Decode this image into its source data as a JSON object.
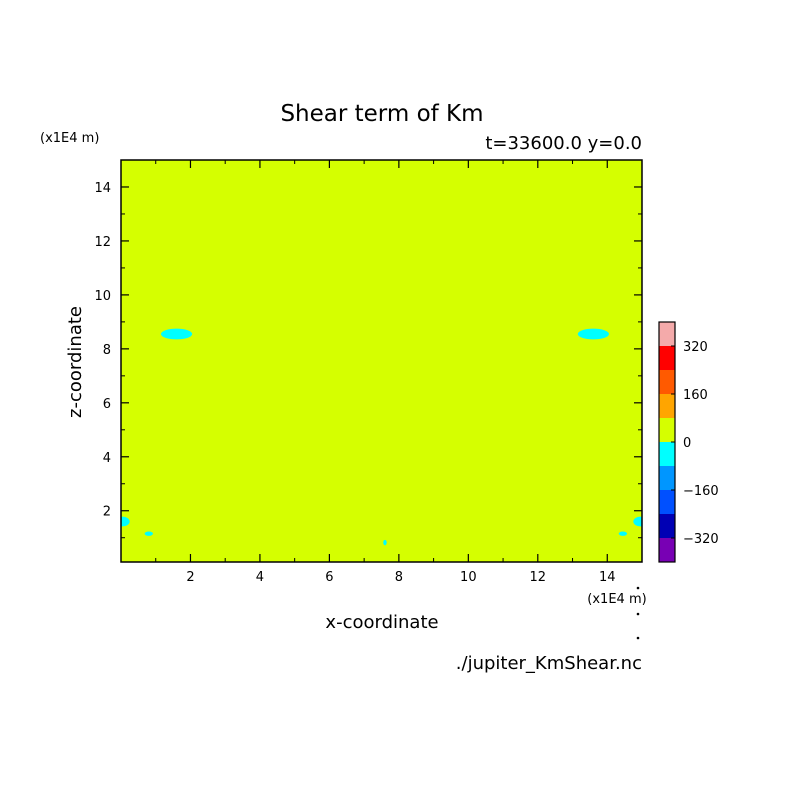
{
  "chart_data": {
    "type": "heatmap",
    "title": "Shear term of Km",
    "subtitle": "t=33600.0 y=0.0",
    "xlabel": "x-coordinate",
    "ylabel": "z-coordinate",
    "x_unit_label": "(x1E4 m)",
    "y_unit_label": "(x1E4 m)",
    "source_file": "./jupiter_KmShear.nc",
    "xlim": [
      0,
      15
    ],
    "ylim": [
      0.1,
      15
    ],
    "x_ticks": [
      2,
      4,
      6,
      8,
      10,
      12,
      14
    ],
    "y_ticks": [
      2,
      4,
      6,
      8,
      10,
      12,
      14
    ],
    "field_background_level": "0 to 80",
    "field_color": "#d5ff00",
    "negative_patches": [
      {
        "x": 1.6,
        "z": 8.55,
        "rx": 0.45,
        "rz": 0.2
      },
      {
        "x": 13.6,
        "z": 8.55,
        "rx": 0.45,
        "rz": 0.2
      },
      {
        "x": 0.05,
        "z": 1.6,
        "rx": 0.2,
        "rz": 0.18
      },
      {
        "x": 14.95,
        "z": 1.6,
        "rx": 0.2,
        "rz": 0.18
      },
      {
        "x": 0.8,
        "z": 1.15,
        "rx": 0.12,
        "rz": 0.08
      },
      {
        "x": 14.45,
        "z": 1.15,
        "rx": 0.12,
        "rz": 0.08
      },
      {
        "x": 7.6,
        "z": 0.82,
        "rx": 0.05,
        "rz": 0.1
      }
    ],
    "negative_patch_color": "#00ffff",
    "colorbar": {
      "levels": [
        {
          "from": 320,
          "to": 400,
          "color": "#f4aaaa"
        },
        {
          "from": 240,
          "to": 320,
          "color": "#ff0000"
        },
        {
          "from": 160,
          "to": 240,
          "color": "#ff5a00"
        },
        {
          "from": 80,
          "to": 160,
          "color": "#ffa500"
        },
        {
          "from": 0,
          "to": 80,
          "color": "#d5ff00"
        },
        {
          "from": -80,
          "to": 0,
          "color": "#00ffff"
        },
        {
          "from": -160,
          "to": -80,
          "color": "#0096ff"
        },
        {
          "from": -240,
          "to": -160,
          "color": "#0050ff"
        },
        {
          "from": -320,
          "to": -240,
          "color": "#0000b4"
        },
        {
          "from": -400,
          "to": -320,
          "color": "#7800b4"
        }
      ],
      "tick_labels": [
        "320",
        "160",
        "0",
        "−160",
        "−320"
      ],
      "tick_values": [
        320,
        160,
        0,
        -160,
        -320
      ]
    }
  }
}
